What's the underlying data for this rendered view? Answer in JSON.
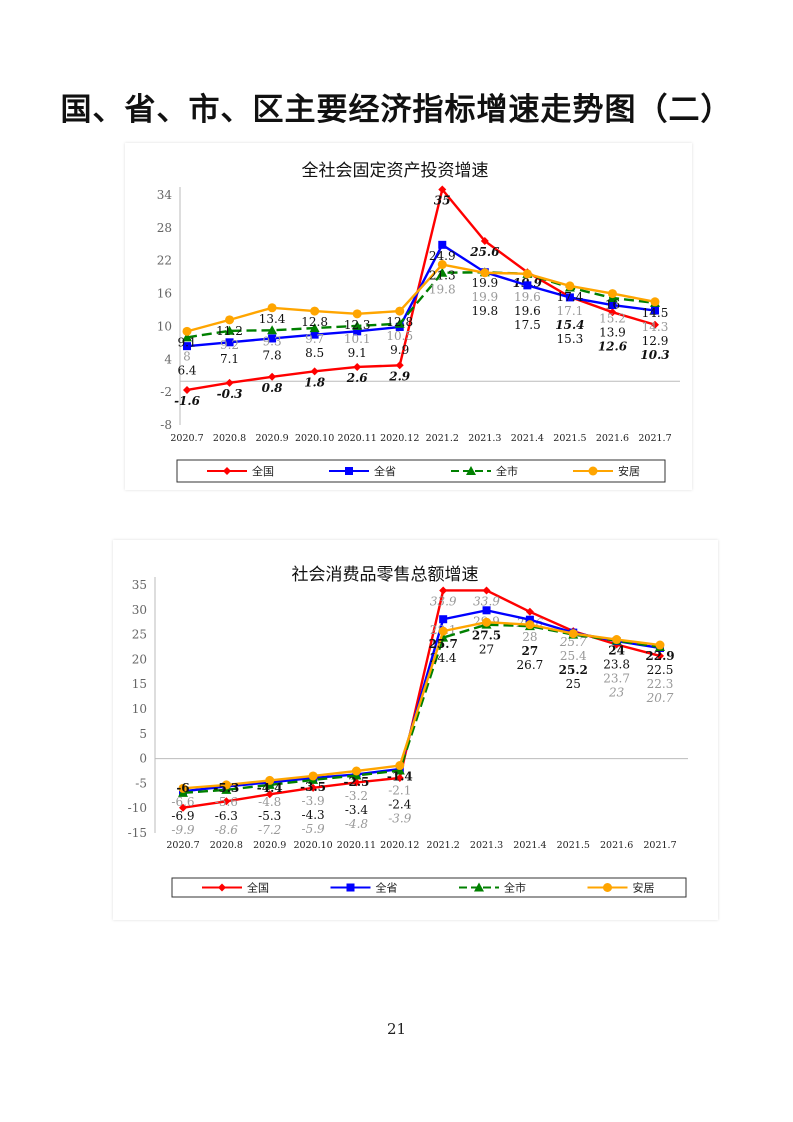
{
  "page_title": "国、省、市、区主要经济指标增速走势图（二）",
  "page_number": "21",
  "chart_data": [
    {
      "type": "line",
      "title": "全社会固定资产投资增速",
      "categories": [
        "2020.7",
        "2020.8",
        "2020.9",
        "2020.10",
        "2020.11",
        "2020.12",
        "2021.2",
        "2021.3",
        "2021.4",
        "2021.5",
        "2021.6",
        "2021.7"
      ],
      "yticks": [
        34,
        28,
        22,
        16,
        10,
        4,
        -2,
        -8
      ],
      "ylim": [
        -8,
        34
      ],
      "legend_position": "bottom",
      "series": [
        {
          "name": "全国",
          "color": "#ff0000",
          "marker": "diamond",
          "values": [
            -1.6,
            -0.3,
            0.8,
            1.8,
            2.6,
            2.9,
            35,
            25.6,
            19.9,
            15.4,
            12.6,
            10.3
          ]
        },
        {
          "name": "全省",
          "color": "#0000ff",
          "marker": "square",
          "values": [
            6.4,
            7.1,
            7.8,
            8.5,
            9.1,
            9.9,
            24.9,
            19.9,
            17.5,
            15.3,
            13.9,
            12.9
          ]
        },
        {
          "name": "全市",
          "color": "#008000",
          "marker": "triangle",
          "dashed": true,
          "values": [
            8,
            9.2,
            9.3,
            9.7,
            10.1,
            10.5,
            19.8,
            19.9,
            19.6,
            17.1,
            15.2,
            14.3
          ]
        },
        {
          "name": "安居",
          "color": "#ffa500",
          "marker": "circle",
          "values": [
            9.1,
            11.2,
            13.4,
            12.8,
            12.3,
            12.8,
            21.3,
            19.8,
            19.6,
            17.4,
            16,
            14.5
          ]
        }
      ]
    },
    {
      "type": "line",
      "title": "社会消费品零售总额增速",
      "categories": [
        "2020.7",
        "2020.8",
        "2020.9",
        "2020.10",
        "2020.11",
        "2020.12",
        "2021.2",
        "2021.3",
        "2021.4",
        "2021.5",
        "2021.6",
        "2021.7"
      ],
      "yticks": [
        35,
        30,
        25,
        20,
        15,
        10,
        5,
        0,
        -5,
        -10,
        -15
      ],
      "ylim": [
        -15,
        35
      ],
      "legend_position": "bottom",
      "series": [
        {
          "name": "全国",
          "color": "#ff0000",
          "marker": "diamond",
          "values": [
            -9.9,
            -8.6,
            -7.2,
            -5.9,
            -4.8,
            -3.9,
            33.9,
            33.9,
            29.6,
            25.7,
            23,
            20.7
          ]
        },
        {
          "name": "全省",
          "color": "#0000ff",
          "marker": "square",
          "values": [
            -6.6,
            -5.6,
            -4.8,
            -3.9,
            -3.2,
            -2.1,
            28.1,
            29.9,
            28,
            25.4,
            23.7,
            22.3
          ]
        },
        {
          "name": "全市",
          "color": "#008000",
          "marker": "triangle",
          "dashed": true,
          "values": [
            -6.9,
            -6.3,
            -5.3,
            -4.3,
            -3.4,
            -2.4,
            24.4,
            27,
            26.7,
            25,
            23.8,
            22.5
          ]
        },
        {
          "name": "安居",
          "color": "#ffa500",
          "marker": "circle",
          "values": [
            -6,
            -5.3,
            -4.4,
            -3.5,
            -2.5,
            -1.4,
            25.7,
            27.5,
            27,
            25.2,
            24,
            22.9
          ]
        }
      ]
    }
  ]
}
